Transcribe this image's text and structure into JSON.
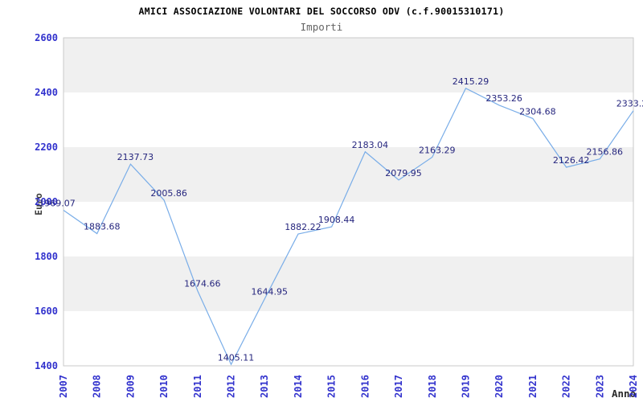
{
  "chart_data": {
    "type": "line",
    "title": "AMICI ASSOCIAZIONE VOLONTARI DEL SOCCORSO ODV (c.f.90015310171)",
    "subtitle": "Importi",
    "xlabel": "Anno",
    "ylabel": "Euro",
    "categories": [
      "2007",
      "2008",
      "2009",
      "2010",
      "2011",
      "2012",
      "2013",
      "2014",
      "2015",
      "2016",
      "2017",
      "2018",
      "2019",
      "2020",
      "2021",
      "2022",
      "2023",
      "2024"
    ],
    "values": [
      1969.07,
      1883.68,
      2137.73,
      2005.86,
      1674.66,
      1405.11,
      1644.95,
      1882.22,
      1908.44,
      2183.04,
      2079.95,
      2163.29,
      2415.29,
      2353.26,
      2304.68,
      2126.42,
      2156.86,
      2333.2
    ],
    "point_labels": [
      "1969.07",
      "1883.68",
      "2137.73",
      "2005.86",
      "1674.66",
      "1405.11",
      "1644.95",
      "1882.22",
      "1908.44",
      "2183.04",
      "2079.95",
      "2163.29",
      "2415.29",
      "2353.26",
      "2304.68",
      "2126.42",
      "2156.86",
      "2333.2"
    ],
    "ylim": [
      1400,
      2600
    ],
    "ytick_step": 200,
    "yticks": [
      "2600",
      "2400",
      "2200",
      "2000",
      "1800",
      "1600",
      "1400"
    ],
    "grid": "alternating-horizontal-bands",
    "legend": "none",
    "colors": {
      "line": "#79ade8",
      "tick_label": "#3232cd",
      "point_label": "#26267e",
      "band": "#f0f0f0",
      "plot_border": "#c9c9c9",
      "title": "#000000",
      "subtitle": "#646464",
      "axis_title": "#3c3c3c",
      "background": "#ffffff"
    }
  }
}
